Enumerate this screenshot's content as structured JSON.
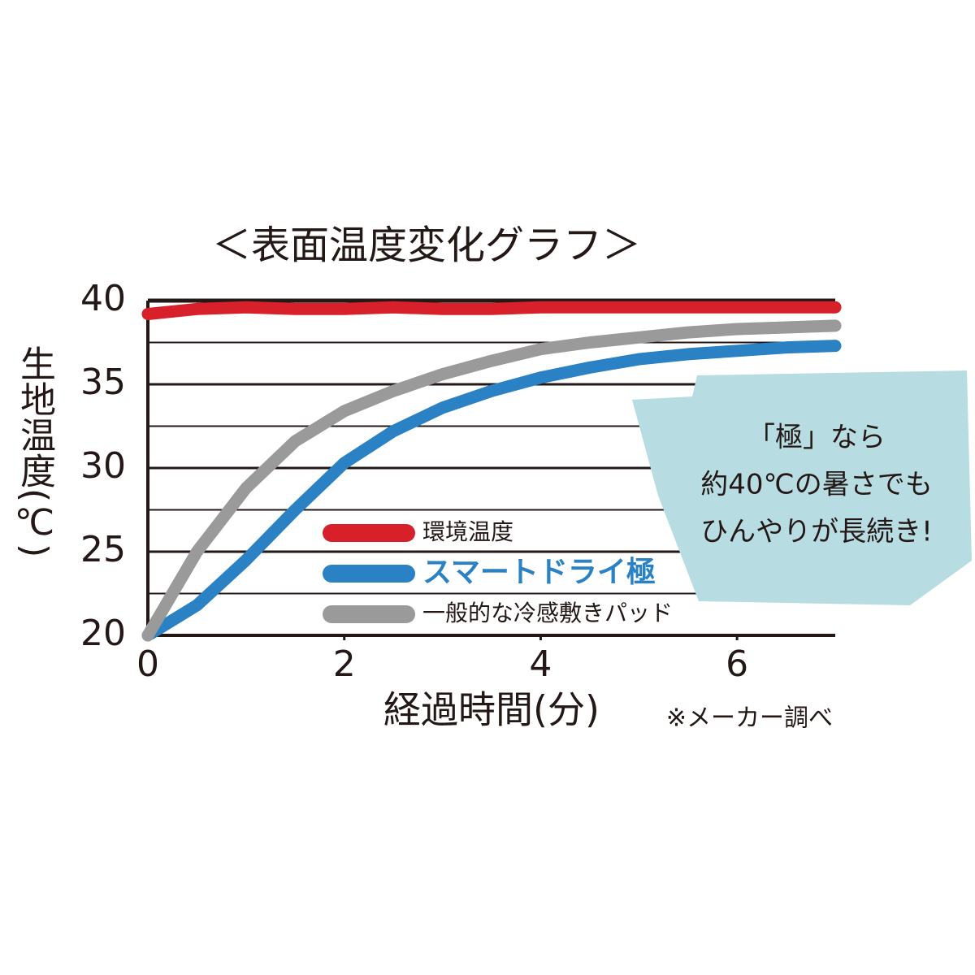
{
  "chart_data": {
    "type": "line",
    "title": "＜表面温度変化グラフ＞",
    "y_label": "生地温度(℃)",
    "x_label": "経過時間(分)",
    "note": "※メーカー調べ",
    "annotation": [
      "「極」なら",
      "約40℃の暑さでも",
      "ひんやりが長続き!"
    ],
    "x": [
      0,
      0.5,
      1,
      1.5,
      2,
      2.5,
      3,
      3.5,
      4,
      4.5,
      5,
      5.5,
      6,
      6.5,
      7
    ],
    "series": [
      {
        "name": "環境温度",
        "color": "#d7202a",
        "values": [
          39.2,
          39.5,
          39.6,
          39.5,
          39.5,
          39.6,
          39.5,
          39.5,
          39.6,
          39.6,
          39.6,
          39.6,
          39.6,
          39.6,
          39.6
        ]
      },
      {
        "name": "スマートドライ極",
        "color": "#2a82c4",
        "values": [
          20,
          21.8,
          24.5,
          27.5,
          30.3,
          32.2,
          33.6,
          34.6,
          35.4,
          36.0,
          36.5,
          36.8,
          37.0,
          37.2,
          37.3
        ]
      },
      {
        "name": "一般的な冷感敷きパッド",
        "color": "#9a9a9a",
        "values": [
          20,
          25,
          28.8,
          31.6,
          33.4,
          34.6,
          35.6,
          36.4,
          37.1,
          37.5,
          37.8,
          38.1,
          38.3,
          38.4,
          38.5
        ]
      }
    ],
    "xlim": [
      0,
      7
    ],
    "xticks": [
      0,
      2,
      4,
      6
    ],
    "ylim": [
      20,
      40
    ],
    "yticks": [
      20,
      25,
      30,
      35,
      40
    ],
    "minor_yticks": [
      22.5,
      27.5,
      32.5,
      37.5
    ],
    "grid": true
  }
}
